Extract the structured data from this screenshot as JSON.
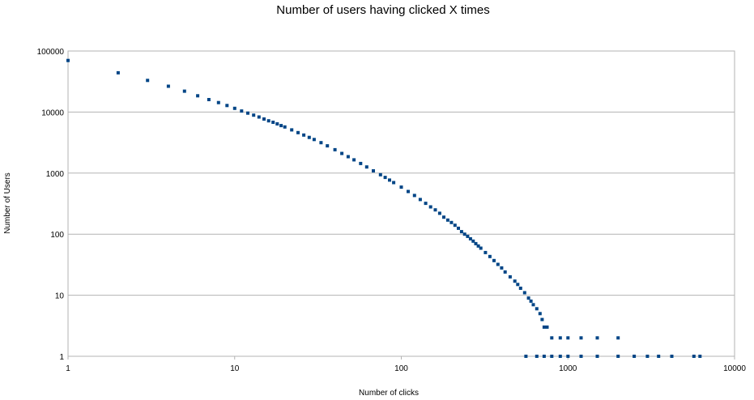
{
  "chart_data": {
    "type": "scatter",
    "title": "Number of users having clicked X times",
    "xlabel": "Number of clicks",
    "ylabel": "Number of Users",
    "x_scale": "log",
    "y_scale": "log",
    "xlim": [
      1,
      10000
    ],
    "ylim": [
      1,
      100000
    ],
    "x_ticks": [
      "1",
      "10",
      "100",
      "1000",
      "10000"
    ],
    "y_ticks": [
      "1",
      "10",
      "100",
      "1000",
      "10000",
      "100000"
    ],
    "grid": "horizontal",
    "legend": "none",
    "marker_color": "#004586",
    "series": [
      {
        "points": [
          [
            1,
            70000
          ],
          [
            2,
            44000
          ],
          [
            3,
            33000
          ],
          [
            4,
            26500
          ],
          [
            5,
            22000
          ],
          [
            6,
            18500
          ],
          [
            7,
            16000
          ],
          [
            8,
            14300
          ],
          [
            9,
            12800
          ],
          [
            10,
            11500
          ],
          [
            11,
            10400
          ],
          [
            12,
            9600
          ],
          [
            13,
            8900
          ],
          [
            14,
            8300
          ],
          [
            15,
            7700
          ],
          [
            16,
            7200
          ],
          [
            17,
            6800
          ],
          [
            18,
            6400
          ],
          [
            19,
            6000
          ],
          [
            20,
            5700
          ],
          [
            22,
            5100
          ],
          [
            24,
            4600
          ],
          [
            26,
            4200
          ],
          [
            28,
            3850
          ],
          [
            30,
            3550
          ],
          [
            33,
            3150
          ],
          [
            36,
            2800
          ],
          [
            40,
            2420
          ],
          [
            44,
            2100
          ],
          [
            48,
            1860
          ],
          [
            52,
            1650
          ],
          [
            57,
            1440
          ],
          [
            62,
            1260
          ],
          [
            68,
            1090
          ],
          [
            75,
            940
          ],
          [
            80,
            850
          ],
          [
            85,
            770
          ],
          [
            90,
            700
          ],
          [
            100,
            590
          ],
          [
            110,
            500
          ],
          [
            120,
            430
          ],
          [
            130,
            370
          ],
          [
            140,
            320
          ],
          [
            150,
            280
          ],
          [
            160,
            250
          ],
          [
            170,
            220
          ],
          [
            180,
            190
          ],
          [
            190,
            170
          ],
          [
            200,
            155
          ],
          [
            210,
            140
          ],
          [
            220,
            125
          ],
          [
            230,
            110
          ],
          [
            240,
            100
          ],
          [
            250,
            92
          ],
          [
            260,
            84
          ],
          [
            270,
            77
          ],
          [
            280,
            70
          ],
          [
            290,
            64
          ],
          [
            300,
            59
          ],
          [
            320,
            50
          ],
          [
            340,
            43
          ],
          [
            360,
            37
          ],
          [
            380,
            32
          ],
          [
            400,
            28
          ],
          [
            420,
            24
          ],
          [
            450,
            20
          ],
          [
            480,
            17
          ],
          [
            500,
            15
          ],
          [
            520,
            13
          ],
          [
            550,
            11
          ],
          [
            580,
            9
          ],
          [
            600,
            8
          ],
          [
            620,
            7
          ],
          [
            650,
            6
          ],
          [
            680,
            5
          ],
          [
            700,
            4
          ],
          [
            720,
            3
          ],
          [
            750,
            3
          ],
          [
            800,
            2
          ],
          [
            900,
            2
          ],
          [
            1000,
            2
          ],
          [
            1200,
            2
          ],
          [
            1500,
            2
          ],
          [
            2000,
            2
          ],
          [
            560,
            1
          ],
          [
            650,
            1
          ],
          [
            720,
            1
          ],
          [
            800,
            1
          ],
          [
            900,
            1
          ],
          [
            1000,
            1
          ],
          [
            1200,
            1
          ],
          [
            1500,
            1
          ],
          [
            2000,
            1
          ],
          [
            2500,
            1
          ],
          [
            3000,
            1
          ],
          [
            3500,
            1
          ],
          [
            4200,
            1
          ],
          [
            5700,
            1
          ],
          [
            6200,
            1
          ]
        ]
      }
    ]
  }
}
